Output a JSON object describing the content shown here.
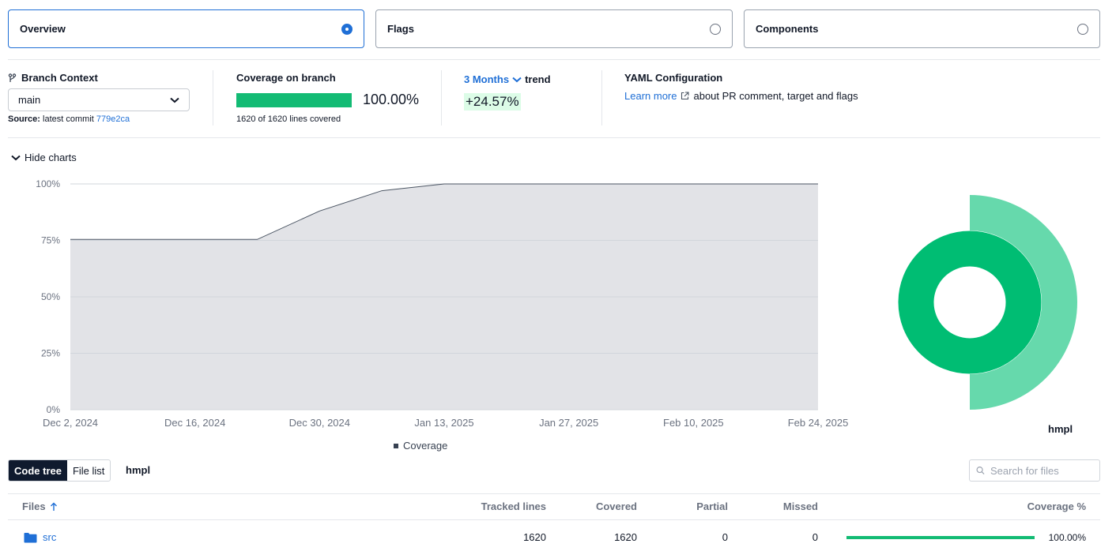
{
  "tabs": [
    {
      "label": "Overview",
      "selected": true
    },
    {
      "label": "Flags",
      "selected": false
    },
    {
      "label": "Components",
      "selected": false
    }
  ],
  "branch_context": {
    "title": "Branch Context",
    "selected_branch": "main",
    "source_label": "Source:",
    "source_text": "latest commit",
    "commit": "779e2ca"
  },
  "coverage_on_branch": {
    "title": "Coverage on branch",
    "percent": "100.00%",
    "fill_fraction": 1.0,
    "lines_text": "1620 of 1620 lines covered"
  },
  "trend": {
    "period": "3 Months",
    "label": "trend",
    "value": "+24.57%"
  },
  "yaml": {
    "title": "YAML Configuration",
    "link": "Learn more",
    "text": "about PR comment, target and flags"
  },
  "charts_toggle": "Hide charts",
  "chart_data": {
    "type": "area",
    "x": [
      "Dec 2, 2024",
      "Dec 9, 2024",
      "Dec 16, 2024",
      "Dec 23, 2024",
      "Dec 30, 2024",
      "Jan 6, 2025",
      "Jan 13, 2025",
      "Jan 20, 2025",
      "Jan 27, 2025",
      "Feb 3, 2025",
      "Feb 10, 2025",
      "Feb 17, 2025",
      "Feb 24, 2025"
    ],
    "values": [
      75.43,
      75.43,
      75.43,
      75.43,
      88,
      97,
      100,
      100,
      100,
      100,
      100,
      100,
      100
    ],
    "x_ticks": [
      "Dec 2, 2024",
      "Dec 16, 2024",
      "Dec 30, 2024",
      "Jan 13, 2025",
      "Jan 27, 2025",
      "Feb 10, 2025",
      "Feb 24, 2025"
    ],
    "y_ticks": [
      "0%",
      "25%",
      "50%",
      "75%",
      "100%"
    ],
    "ylim": [
      0,
      100
    ],
    "grid": true,
    "legend": "bottom",
    "series_name": "Coverage",
    "colors": {
      "area": "#e2e3e7",
      "line": "#4b5563",
      "legend": "#374151"
    }
  },
  "sunburst": {
    "label": "hmpl",
    "inner_color": "#00bd73",
    "outer_color": "#66d9ac",
    "inner_coverage": 100,
    "outer_coverage": 100
  },
  "view_toggle": [
    "Code tree",
    "File list"
  ],
  "view_selected": "Code tree",
  "repo_crumb": "hmpl",
  "search": {
    "placeholder": "Search for files"
  },
  "table": {
    "headers": [
      "Files",
      "Tracked lines",
      "Covered",
      "Partial",
      "Missed",
      "Coverage %"
    ],
    "rows": [
      {
        "name": "src",
        "tracked": "1620",
        "covered": "1620",
        "partial": "0",
        "missed": "0",
        "coverage": "100.00%",
        "coverage_fraction": 1.0
      }
    ]
  },
  "colors": {
    "accent": "#1f6fd6",
    "coverage_green": "#13bb74",
    "dark": "#0f1a2e"
  }
}
